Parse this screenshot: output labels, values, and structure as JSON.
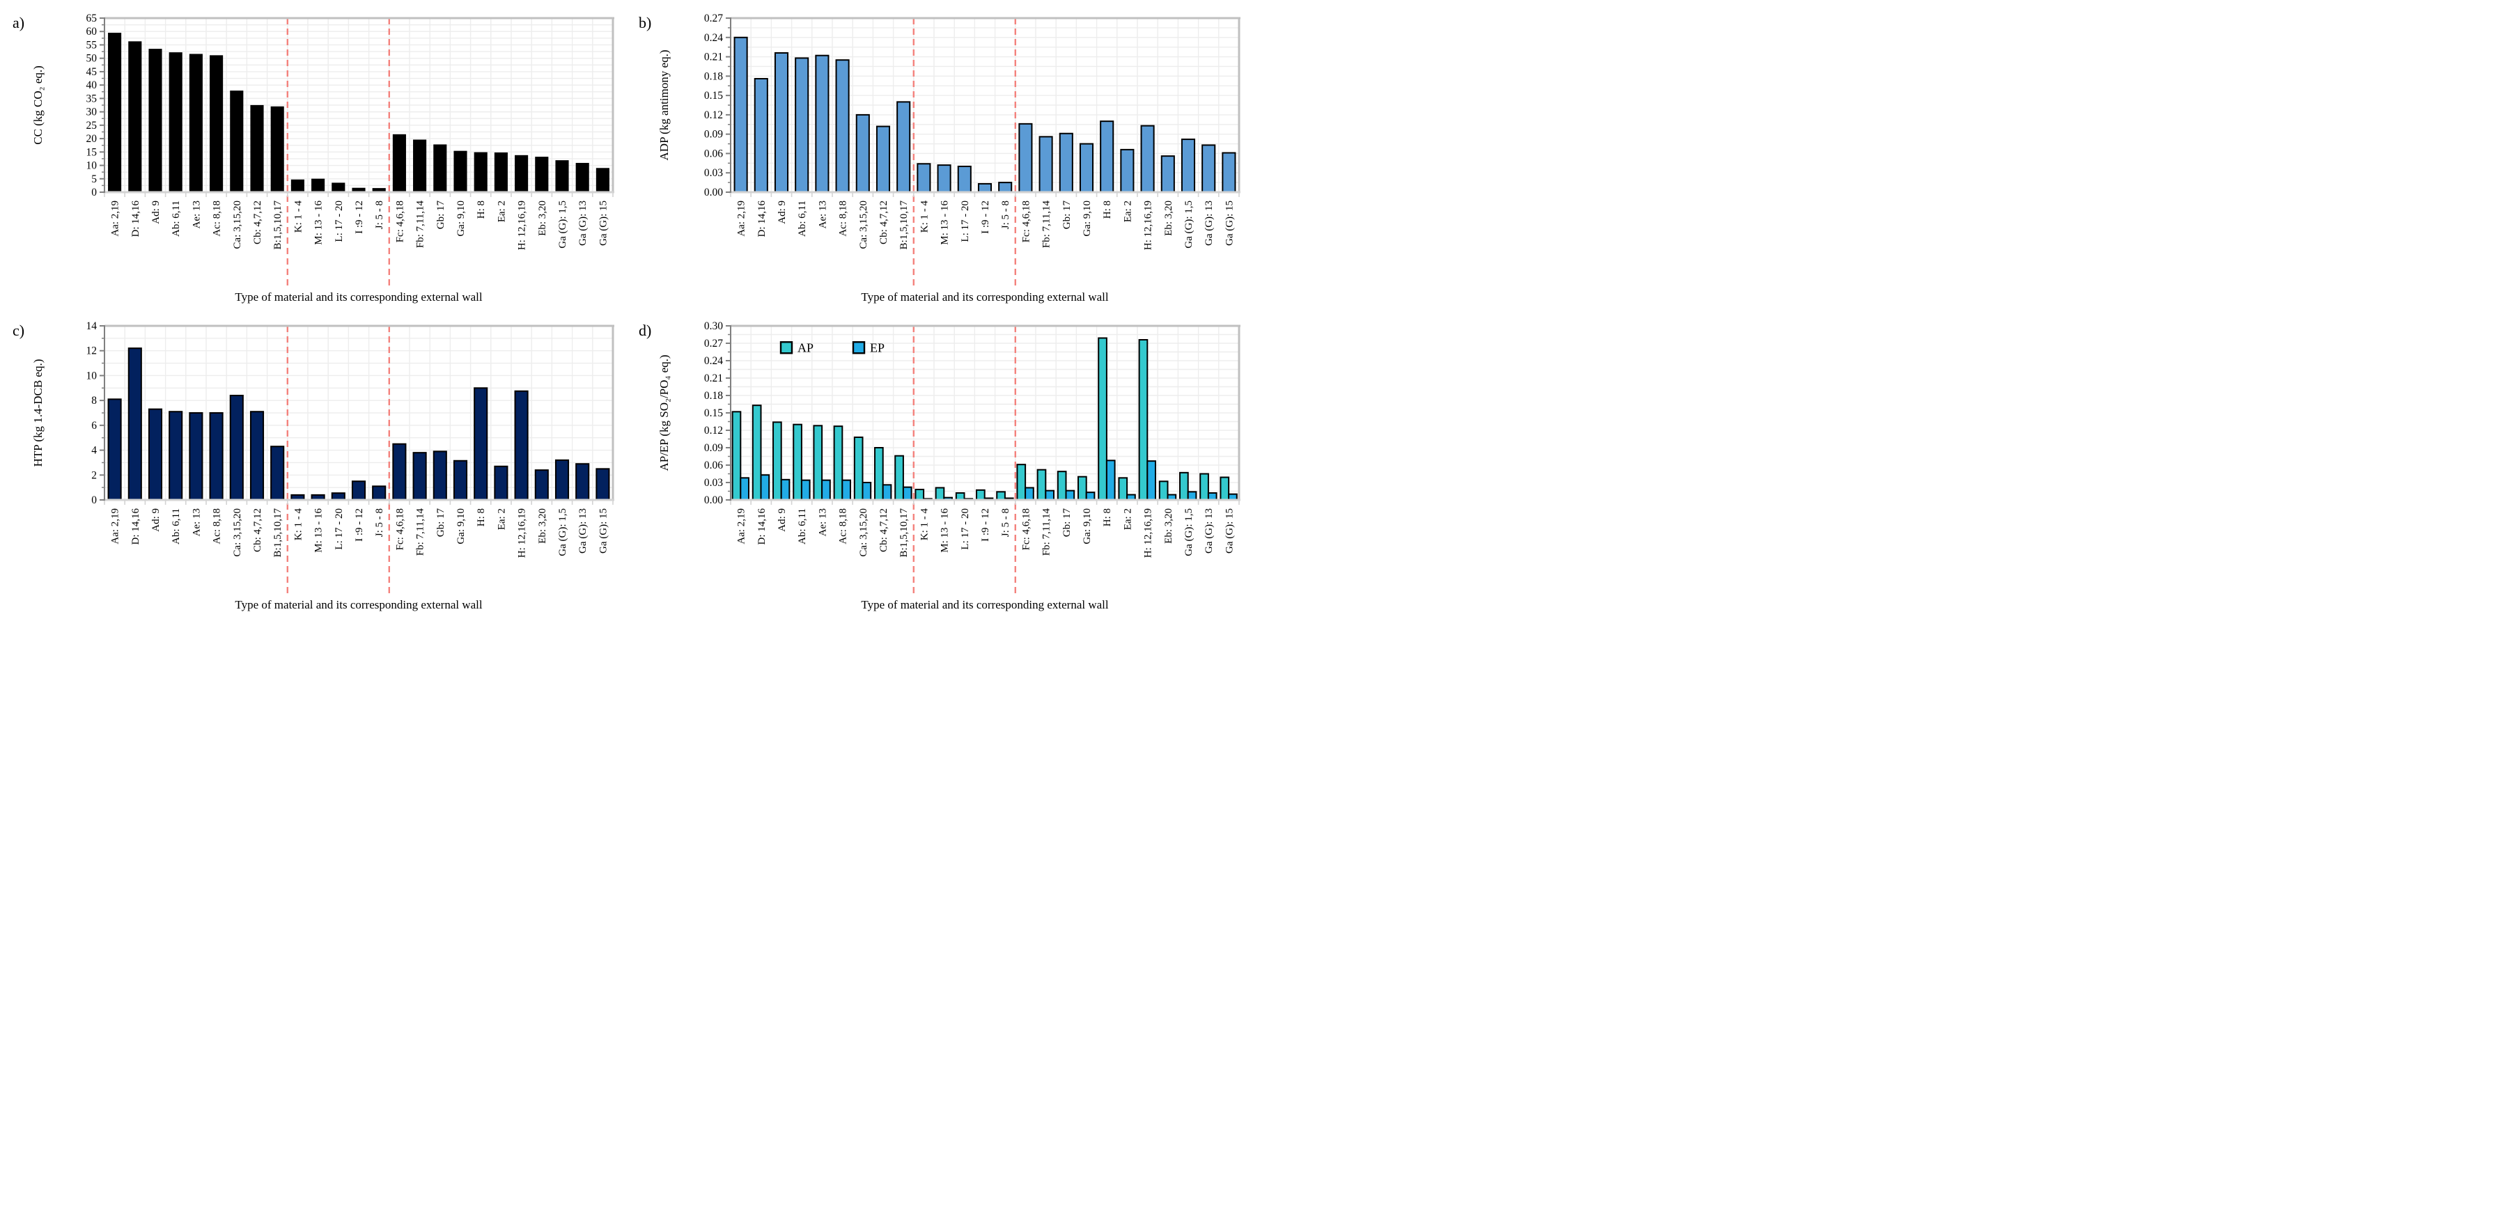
{
  "figure": {
    "background": "#FFFFFF",
    "x_axis_title": "Type of material and its corresponding external wall",
    "separator_color": "#F4827D",
    "grid_color": "#EDEDED",
    "plot_border_color": "#C0C0C0",
    "left_axis_color": "#808080",
    "bottom_axis_color": "#D3D3D3",
    "bar_outline_color": "#000000"
  },
  "chart_data": [
    {
      "id": "a",
      "panel_letter": "a)",
      "type": "bar",
      "ylabel": "CC (kg CO₂ eq.)",
      "xlabel": "Type of material and its corresponding external wall",
      "ylim": [
        0,
        65
      ],
      "ystep": 5,
      "ydecimals": 0,
      "grid": true,
      "legend_position": "none",
      "separators_after_index": [
        9,
        14
      ],
      "categories": [
        "Aa: 2,19",
        "D: 14,16",
        "Ad: 9",
        "Ab: 6,11",
        "Ae: 13",
        "Ac: 8,18",
        "Ca: 3,15,20",
        "Cb: 4,7,12",
        "B:1,5,10,17",
        "K: 1 - 4",
        "M: 13 - 16",
        "L: 17 - 20",
        "I :9 - 12",
        "J: 5 - 8",
        "Fc: 4,6,18",
        "Fb: 7,11,14",
        "Gb: 17",
        "Ga: 9,10",
        "H: 8",
        "Ea: 2",
        "H: 12,16,19",
        "Eb: 3,20",
        "Ga (G): 1,5",
        "Ga (G): 13",
        "Ga (G): 15"
      ],
      "series": [
        {
          "name": "CC",
          "color": "#000000",
          "values": [
            59.4,
            56.2,
            53.4,
            52.1,
            51.5,
            51.0,
            37.8,
            32.4,
            31.9,
            4.6,
            4.9,
            3.4,
            1.5,
            1.4,
            21.5,
            19.5,
            17.7,
            15.3,
            14.8,
            14.7,
            13.7,
            13.1,
            11.8,
            10.8,
            8.9
          ]
        }
      ]
    },
    {
      "id": "b",
      "panel_letter": "b)",
      "type": "bar",
      "ylabel": "ADP (kg antimony eq.)",
      "xlabel": "Type of material and its corresponding external wall",
      "ylim": [
        0,
        0.27
      ],
      "ystep": 0.03,
      "ydecimals": 2,
      "grid": true,
      "legend_position": "none",
      "separators_after_index": [
        9,
        14
      ],
      "categories": [
        "Aa: 2,19",
        "D: 14,16",
        "Ad: 9",
        "Ab: 6,11",
        "Ae: 13",
        "Ac: 8,18",
        "Ca: 3,15,20",
        "Cb: 4,7,12",
        "B:1,5,10,17",
        "K: 1 - 4",
        "M: 13 - 16",
        "L: 17 - 20",
        "I :9 - 12",
        "J: 5 - 8",
        "Fc: 4,6,18",
        "Fb: 7,11,14",
        "Gb: 17",
        "Ga: 9,10",
        "H: 8",
        "Ea: 2",
        "H: 12,16,19",
        "Eb: 3,20",
        "Ga (G): 1,5",
        "Ga (G): 13",
        "Ga (G): 15"
      ],
      "series": [
        {
          "name": "ADP",
          "color": "#5B9BD5",
          "values": [
            0.24,
            0.176,
            0.216,
            0.208,
            0.212,
            0.205,
            0.12,
            0.102,
            0.14,
            0.044,
            0.042,
            0.04,
            0.013,
            0.015,
            0.106,
            0.086,
            0.091,
            0.075,
            0.11,
            0.066,
            0.103,
            0.056,
            0.082,
            0.073,
            0.061
          ]
        }
      ]
    },
    {
      "id": "c",
      "panel_letter": "c)",
      "type": "bar",
      "ylabel": "HTP (kg 1.4-DCB eq.)",
      "xlabel": "Type of material and its corresponding external wall",
      "ylim": [
        0,
        14
      ],
      "ystep": 2,
      "ydecimals": 0,
      "grid": true,
      "legend_position": "none",
      "separators_after_index": [
        9,
        14
      ],
      "categories": [
        "Aa: 2,19",
        "D: 14,16",
        "Ad: 9",
        "Ab: 6,11",
        "Ae: 13",
        "Ac: 8,18",
        "Ca: 3,15,20",
        "Cb: 4,7,12",
        "B:1,5,10,17",
        "K: 1 - 4",
        "M: 13 - 16",
        "L: 17 - 20",
        "I :9 - 12",
        "J: 5 - 8",
        "Fc: 4,6,18",
        "Fb: 7,11,14",
        "Gb: 17",
        "Ga: 9,10",
        "H: 8",
        "Ea: 2",
        "H: 12,16,19",
        "Eb: 3,20",
        "Ga (G): 1,5",
        "Ga (G): 13",
        "Ga (G): 15"
      ],
      "series": [
        {
          "name": "HTP",
          "color": "#02215E",
          "values": [
            8.1,
            12.2,
            7.3,
            7.1,
            7.0,
            7.0,
            8.4,
            7.1,
            4.3,
            0.4,
            0.4,
            0.55,
            1.5,
            1.1,
            4.5,
            3.8,
            3.9,
            3.15,
            9.0,
            2.7,
            8.75,
            2.4,
            3.2,
            2.9,
            2.5
          ]
        }
      ]
    },
    {
      "id": "d",
      "panel_letter": "d)",
      "type": "bar",
      "ylabel": "AP/EP (kg SO₂/PO₄ eq.)",
      "xlabel": "Type of material and its corresponding external wall",
      "ylim": [
        0,
        0.3
      ],
      "ystep": 0.03,
      "ydecimals": 2,
      "grid": true,
      "legend_position": "top-left-inside",
      "legend_entries": [
        "AP",
        "EP"
      ],
      "separators_after_index": [
        9,
        14
      ],
      "categories": [
        "Aa: 2,19",
        "D: 14,16",
        "Ad: 9",
        "Ab: 6,11",
        "Ae: 13",
        "Ac: 8,18",
        "Ca: 3,15,20",
        "Cb: 4,7,12",
        "B:1,5,10,17",
        "K: 1 - 4",
        "M: 13 - 16",
        "L: 17 - 20",
        "I :9 - 12",
        "J: 5 - 8",
        "Fc: 4,6,18",
        "Fb: 7,11,14",
        "Gb: 17",
        "Ga: 9,10",
        "H: 8",
        "Ea: 2",
        "H: 12,16,19",
        "Eb: 3,20",
        "Ga (G): 1,5",
        "Ga (G): 13",
        "Ga (G): 15"
      ],
      "series": [
        {
          "name": "AP",
          "color": "#34C9CE",
          "values": [
            0.152,
            0.163,
            0.134,
            0.13,
            0.128,
            0.127,
            0.108,
            0.09,
            0.076,
            0.018,
            0.021,
            0.012,
            0.017,
            0.014,
            0.061,
            0.052,
            0.049,
            0.04,
            0.279,
            0.038,
            0.276,
            0.032,
            0.047,
            0.045,
            0.039
          ]
        },
        {
          "name": "EP",
          "color": "#22ACE6",
          "values": [
            0.038,
            0.043,
            0.035,
            0.034,
            0.034,
            0.034,
            0.03,
            0.026,
            0.022,
            0.002,
            0.004,
            0.002,
            0.003,
            0.003,
            0.021,
            0.016,
            0.016,
            0.013,
            0.068,
            0.009,
            0.067,
            0.009,
            0.014,
            0.012,
            0.01
          ]
        }
      ]
    }
  ]
}
